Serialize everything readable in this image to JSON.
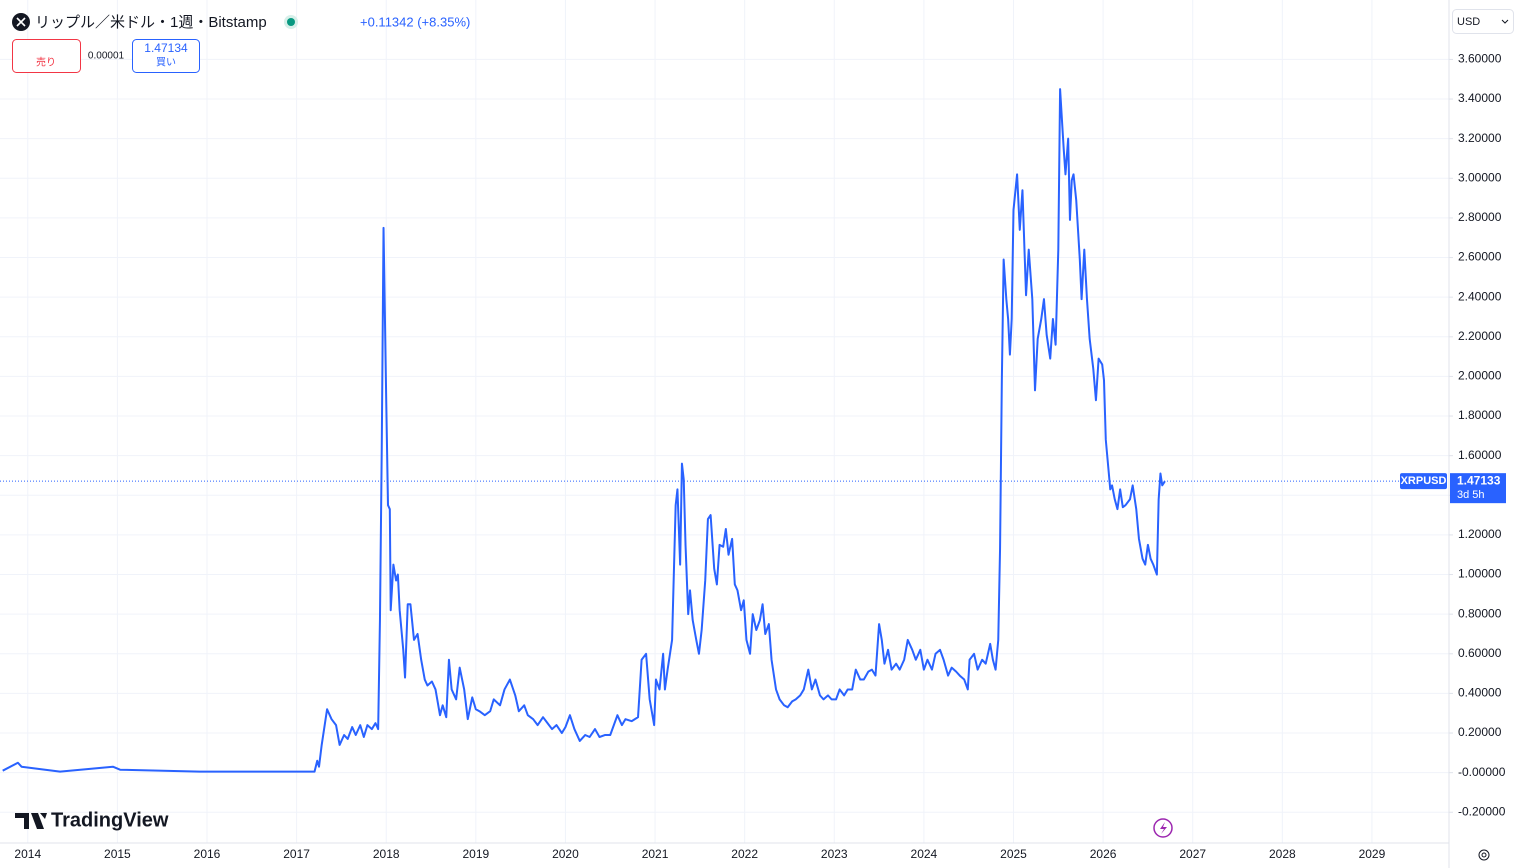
{
  "chart_data": {
    "type": "line",
    "title": "リップル／米ドル・1週・Bitstamp",
    "change": "+0.11342 (+8.35%)",
    "sell_label": "売り",
    "spread": "0.00001",
    "buy_price": "1.47134",
    "buy_label": "買い",
    "currency": "USD",
    "countdown": "3d 5h",
    "brand": "TradingView",
    "x": [
      2013.72,
      2013.89,
      2013.93,
      2014.36,
      2014.95,
      2015.03,
      2015.92,
      2017.2,
      2017.23,
      2017.25,
      2017.28,
      2017.34,
      2017.39,
      2017.44,
      2017.48,
      2017.53,
      2017.57,
      2017.62,
      2017.66,
      2017.71,
      2017.75,
      2017.79,
      2017.84,
      2017.88,
      2017.91,
      2017.93,
      2017.95,
      2017.97,
      2018.0,
      2018.02,
      2018.04,
      2018.05,
      2018.08,
      2018.11,
      2018.13,
      2018.15,
      2018.19,
      2018.21,
      2018.24,
      2018.27,
      2018.31,
      2018.35,
      2018.39,
      2018.43,
      2018.46,
      2018.51,
      2018.55,
      2018.6,
      2018.63,
      2018.67,
      2018.7,
      2018.73,
      2018.78,
      2018.82,
      2018.87,
      2018.91,
      2018.96,
      2019.0,
      2019.04,
      2019.1,
      2019.16,
      2019.2,
      2019.27,
      2019.32,
      2019.38,
      2019.44,
      2019.48,
      2019.54,
      2019.58,
      2019.64,
      2019.69,
      2019.75,
      2019.8,
      2019.85,
      2019.9,
      2019.96,
      2020.0,
      2020.05,
      2020.1,
      2020.16,
      2020.22,
      2020.27,
      2020.33,
      2020.38,
      2020.44,
      2020.5,
      2020.54,
      2020.58,
      2020.63,
      2020.67,
      2020.74,
      2020.81,
      2020.85,
      2020.9,
      2020.94,
      2020.99,
      2021.01,
      2021.05,
      2021.09,
      2021.11,
      2021.14,
      2021.19,
      2021.23,
      2021.25,
      2021.28,
      2021.3,
      2021.32,
      2021.34,
      2021.37,
      2021.39,
      2021.42,
      2021.46,
      2021.49,
      2021.52,
      2021.56,
      2021.59,
      2021.62,
      2021.66,
      2021.69,
      2021.72,
      2021.76,
      2021.79,
      2021.82,
      2021.86,
      2021.89,
      2021.92,
      2021.96,
      2021.99,
      2022.02,
      2022.06,
      2022.09,
      2022.13,
      2022.17,
      2022.2,
      2022.23,
      2022.27,
      2022.3,
      2022.35,
      2022.39,
      2022.44,
      2022.48,
      2022.53,
      2022.57,
      2022.62,
      2022.66,
      2022.71,
      2022.75,
      2022.79,
      2022.84,
      2022.88,
      2022.93,
      2022.97,
      2023.02,
      2023.06,
      2023.11,
      2023.15,
      2023.2,
      2023.24,
      2023.29,
      2023.33,
      2023.38,
      2023.42,
      2023.46,
      2023.5,
      2023.53,
      2023.56,
      2023.6,
      2023.64,
      2023.69,
      2023.73,
      2023.78,
      2023.82,
      2023.87,
      2023.91,
      2023.96,
      2024.0,
      2024.04,
      2024.09,
      2024.13,
      2024.18,
      2024.22,
      2024.27,
      2024.31,
      2024.36,
      2024.4,
      2024.45,
      2024.49,
      2024.51,
      2024.56,
      2024.6,
      2024.65,
      2024.69,
      2024.74,
      2024.77,
      2024.8,
      2024.83,
      2024.85,
      2024.87,
      2024.89,
      2024.92,
      2024.94,
      2024.96,
      2024.98,
      2025.0,
      2025.04,
      2025.07,
      2025.1,
      2025.14,
      2025.17,
      2025.21,
      2025.24,
      2025.27,
      2025.31,
      2025.34,
      2025.37,
      2025.41,
      2025.44,
      2025.47,
      2025.5,
      2025.52,
      2025.54,
      2025.56,
      2025.58,
      2025.61,
      2025.63,
      2025.65,
      2025.67,
      2025.7,
      2025.72,
      2025.74,
      2025.76,
      2025.79,
      2025.82,
      2025.85,
      2025.89,
      2025.92,
      2025.95,
      2025.99,
      2026.01,
      2026.03,
      2026.06,
      2026.08,
      2026.1,
      2026.13,
      2026.16,
      2026.19,
      2026.22,
      2026.25,
      2026.3,
      2026.33,
      2026.37,
      2026.4,
      2026.42,
      2026.44,
      2026.47,
      2026.5,
      2026.53,
      2026.56,
      2026.6,
      2026.62,
      2026.64,
      2026.66,
      2026.69
    ],
    "series": [
      {
        "name": "XRPUSD",
        "color": "#2962ff",
        "values": [
          0.01,
          0.05,
          0.03,
          0.005,
          0.03,
          0.015,
          0.005,
          0.005,
          0.06,
          0.03,
          0.14,
          0.32,
          0.27,
          0.24,
          0.14,
          0.19,
          0.17,
          0.23,
          0.19,
          0.24,
          0.18,
          0.24,
          0.22,
          0.25,
          0.22,
          0.77,
          1.63,
          2.75,
          1.88,
          1.35,
          1.33,
          0.82,
          1.05,
          0.97,
          1.0,
          0.82,
          0.62,
          0.48,
          0.85,
          0.85,
          0.67,
          0.7,
          0.57,
          0.47,
          0.44,
          0.46,
          0.42,
          0.29,
          0.34,
          0.28,
          0.57,
          0.42,
          0.37,
          0.53,
          0.42,
          0.27,
          0.38,
          0.32,
          0.31,
          0.29,
          0.31,
          0.37,
          0.34,
          0.42,
          0.47,
          0.39,
          0.31,
          0.34,
          0.29,
          0.27,
          0.24,
          0.28,
          0.25,
          0.22,
          0.24,
          0.2,
          0.23,
          0.29,
          0.22,
          0.16,
          0.19,
          0.18,
          0.22,
          0.18,
          0.19,
          0.19,
          0.24,
          0.29,
          0.24,
          0.27,
          0.26,
          0.28,
          0.57,
          0.6,
          0.37,
          0.24,
          0.47,
          0.42,
          0.6,
          0.42,
          0.52,
          0.67,
          1.35,
          1.43,
          1.05,
          1.56,
          1.48,
          1.15,
          0.8,
          0.92,
          0.77,
          0.67,
          0.6,
          0.72,
          0.97,
          1.28,
          1.3,
          1.03,
          0.95,
          1.15,
          1.14,
          1.23,
          1.1,
          1.18,
          0.95,
          0.92,
          0.82,
          0.87,
          0.67,
          0.6,
          0.8,
          0.72,
          0.77,
          0.85,
          0.7,
          0.75,
          0.57,
          0.42,
          0.37,
          0.34,
          0.33,
          0.36,
          0.37,
          0.39,
          0.42,
          0.52,
          0.42,
          0.47,
          0.39,
          0.37,
          0.39,
          0.37,
          0.37,
          0.42,
          0.39,
          0.42,
          0.42,
          0.52,
          0.47,
          0.47,
          0.51,
          0.52,
          0.49,
          0.75,
          0.67,
          0.55,
          0.62,
          0.52,
          0.55,
          0.52,
          0.57,
          0.67,
          0.62,
          0.57,
          0.62,
          0.52,
          0.57,
          0.52,
          0.6,
          0.62,
          0.57,
          0.49,
          0.53,
          0.51,
          0.49,
          0.47,
          0.42,
          0.57,
          0.6,
          0.52,
          0.57,
          0.55,
          0.65,
          0.57,
          0.52,
          0.67,
          1.13,
          1.98,
          2.59,
          2.39,
          2.29,
          2.11,
          2.29,
          2.84,
          3.02,
          2.74,
          2.94,
          2.41,
          2.64,
          2.39,
          1.93,
          2.19,
          2.29,
          2.39,
          2.21,
          2.09,
          2.29,
          2.16,
          2.64,
          3.45,
          3.3,
          3.15,
          3.02,
          3.2,
          2.79,
          2.99,
          3.02,
          2.89,
          2.74,
          2.59,
          2.39,
          2.64,
          2.39,
          2.19,
          2.04,
          1.88,
          2.09,
          2.06,
          1.98,
          1.68,
          1.53,
          1.43,
          1.45,
          1.38,
          1.33,
          1.43,
          1.34,
          1.35,
          1.38,
          1.45,
          1.33,
          1.18,
          1.13,
          1.08,
          1.05,
          1.15,
          1.08,
          1.05,
          1.0,
          1.38,
          1.51,
          1.45,
          1.47133
        ]
      }
    ],
    "xlim": [
      2013.69,
      2029.86
    ],
    "xticks": [
      2014,
      2015,
      2016,
      2017,
      2018,
      2019,
      2020,
      2021,
      2022,
      2023,
      2024,
      2025,
      2026,
      2027,
      2028,
      2029
    ],
    "ylim": [
      -0.35,
      3.9
    ],
    "yticks": [
      {
        "value": 3.6,
        "label": "3.60000"
      },
      {
        "value": 3.4,
        "label": "3.40000"
      },
      {
        "value": 3.2,
        "label": "3.20000"
      },
      {
        "value": 3.0,
        "label": "3.00000"
      },
      {
        "value": 2.8,
        "label": "2.80000"
      },
      {
        "value": 2.6,
        "label": "2.60000"
      },
      {
        "value": 2.4,
        "label": "2.40000"
      },
      {
        "value": 2.2,
        "label": "2.20000"
      },
      {
        "value": 2.0,
        "label": "2.00000"
      },
      {
        "value": 1.8,
        "label": "1.80000"
      },
      {
        "value": 1.6,
        "label": "1.60000"
      },
      {
        "value": 1.4,
        "label": "1.40000"
      },
      {
        "value": 1.2,
        "label": "1.20000"
      },
      {
        "value": 1.0,
        "label": "1.00000"
      },
      {
        "value": 0.8,
        "label": "0.80000"
      },
      {
        "value": 0.6,
        "label": "0.60000"
      },
      {
        "value": 0.4,
        "label": "0.40000"
      },
      {
        "value": 0.2,
        "label": "0.20000"
      },
      {
        "value": 0,
        "label": "-0.00000"
      },
      {
        "value": -0.2,
        "label": "-0.20000"
      }
    ],
    "grid": true
  }
}
